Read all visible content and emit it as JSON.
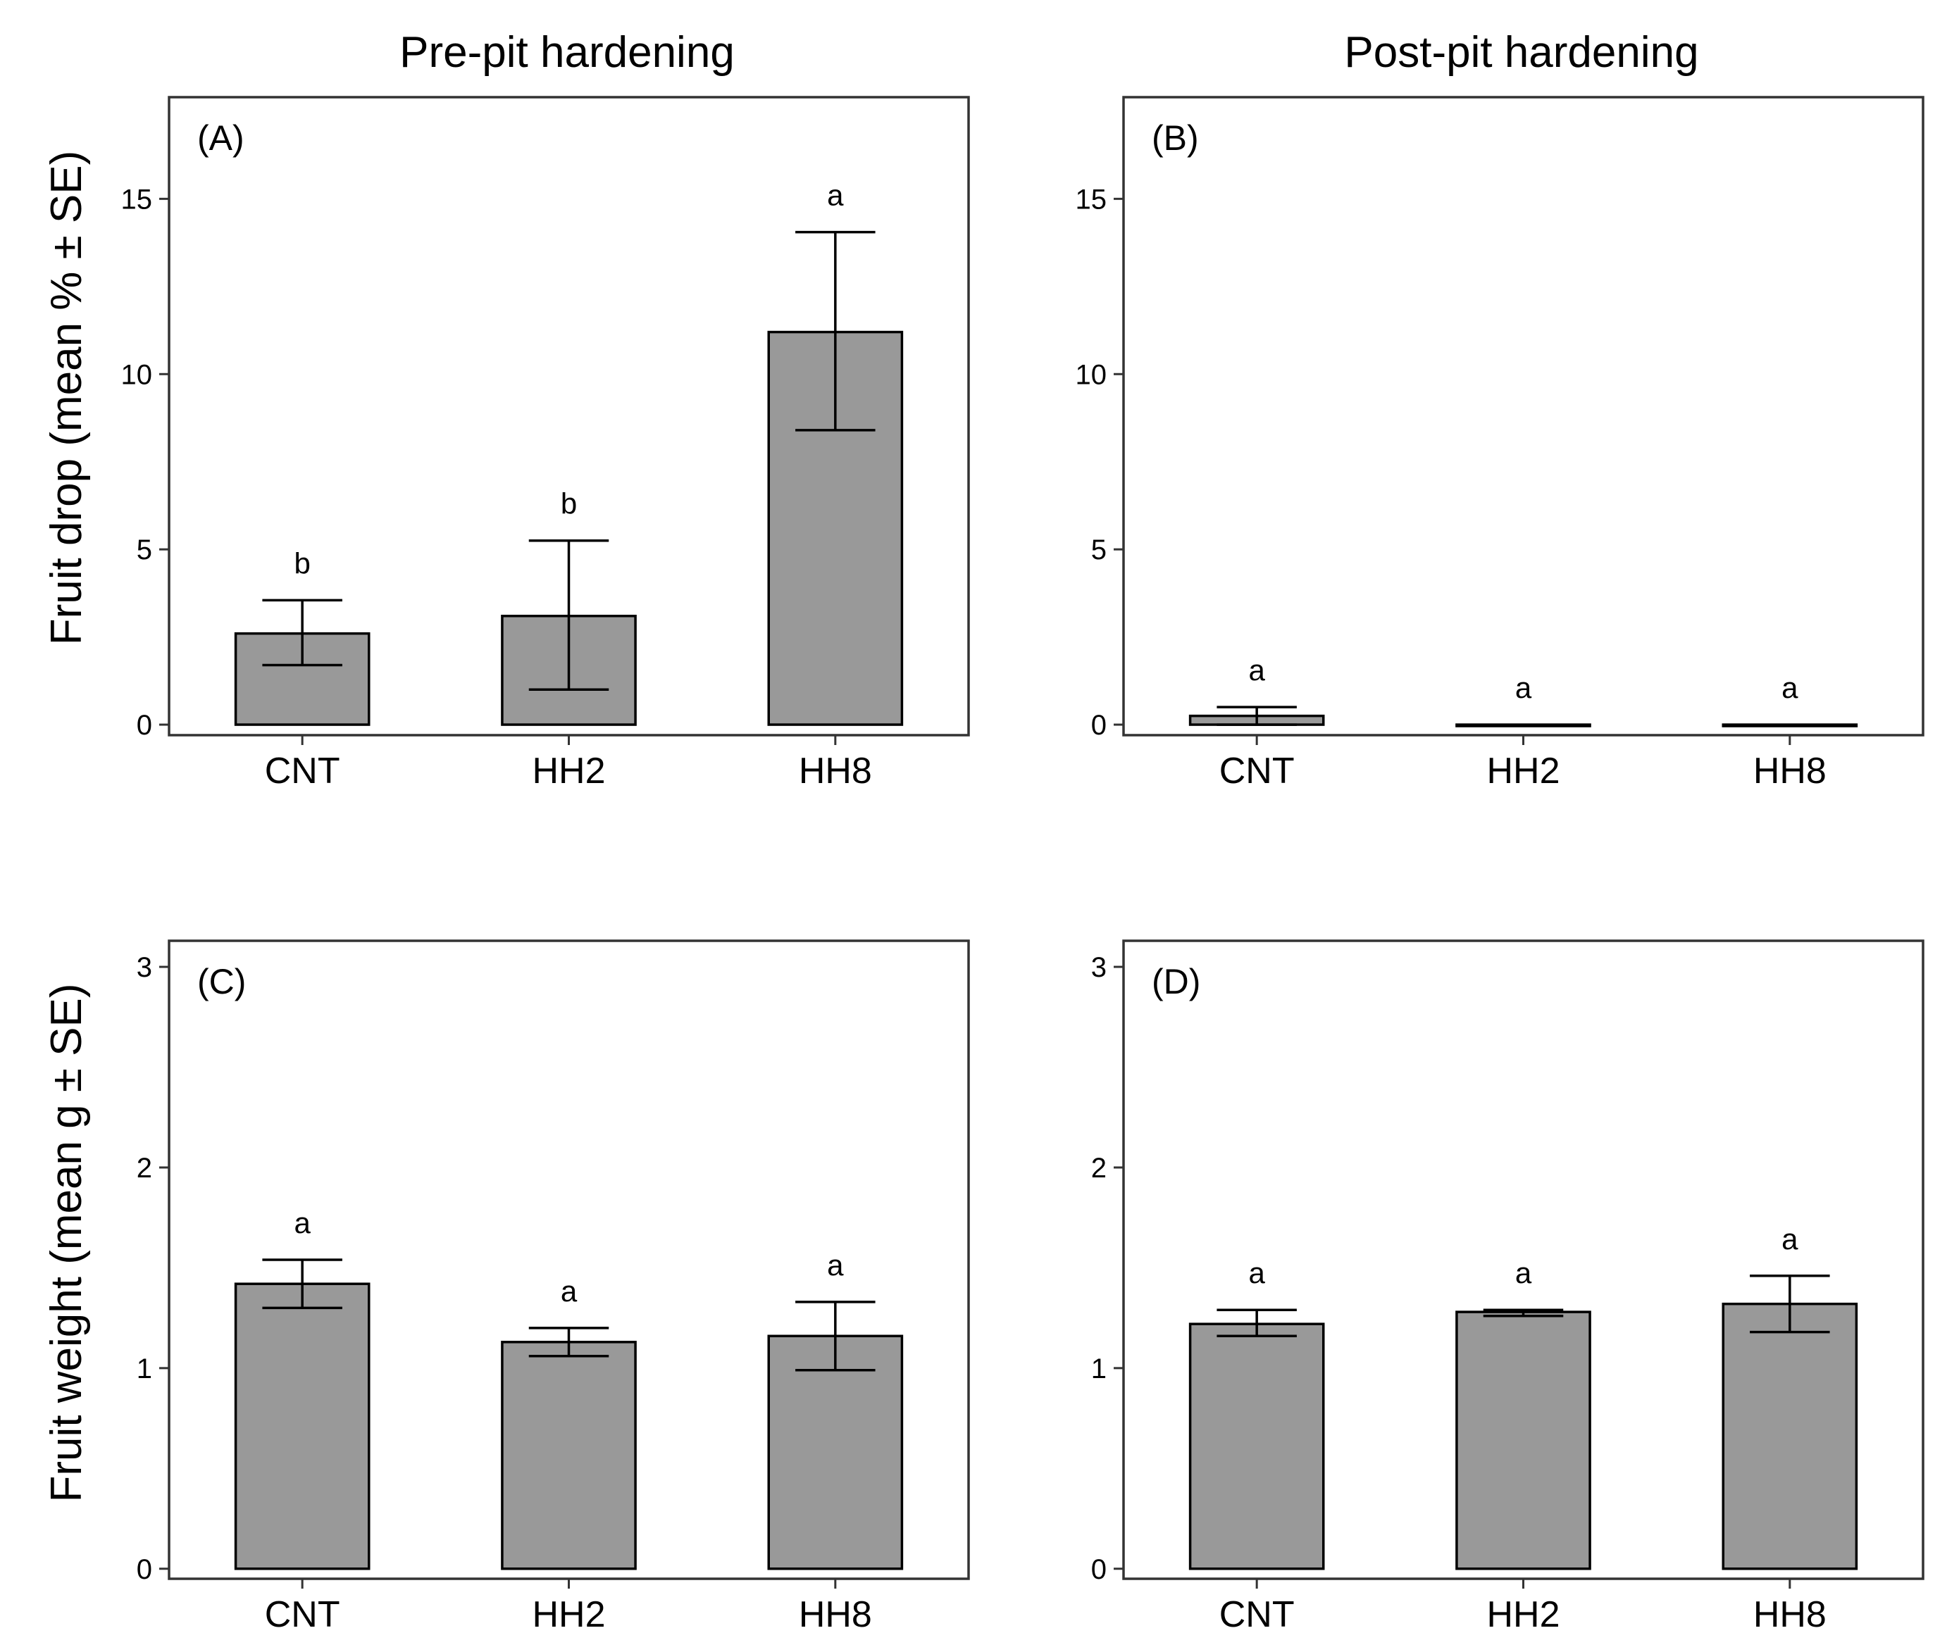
{
  "column_titles": [
    "Pre-pit hardening",
    "Post-pit hardening"
  ],
  "row_ylabels": [
    "Fruit drop (mean % ± SE)",
    "Fruit weight (mean g ± SE)"
  ],
  "colors": {
    "bar_fill": "#999999",
    "bar_stroke": "#000000",
    "frame": "#333333"
  },
  "chart_data": [
    {
      "panel": "(A)",
      "type": "bar",
      "row": 0,
      "col": 0,
      "categories": [
        "CNT",
        "HH2",
        "HH8"
      ],
      "values": [
        2.6,
        3.1,
        11.2
      ],
      "se_low": [
        1.7,
        1.0,
        8.4
      ],
      "se_high": [
        3.55,
        5.25,
        14.05
      ],
      "letters": [
        "b",
        "b",
        "a"
      ],
      "ylim": [
        -0.3,
        17.9
      ],
      "yticks": [
        0,
        5,
        10,
        15
      ]
    },
    {
      "panel": "(B)",
      "type": "bar",
      "row": 0,
      "col": 1,
      "categories": [
        "CNT",
        "HH2",
        "HH8"
      ],
      "values": [
        0.25,
        0.0,
        0.0
      ],
      "se_low": [
        0.0,
        0.0,
        0.0
      ],
      "se_high": [
        0.5,
        0.0,
        0.0
      ],
      "letters": [
        "a",
        "a",
        "a"
      ],
      "ylim": [
        -0.3,
        17.9
      ],
      "yticks": [
        0,
        5,
        10,
        15
      ]
    },
    {
      "panel": "(C)",
      "type": "bar",
      "row": 1,
      "col": 0,
      "categories": [
        "CNT",
        "HH2",
        "HH8"
      ],
      "values": [
        1.42,
        1.13,
        1.16
      ],
      "se_low": [
        1.3,
        1.06,
        0.99
      ],
      "se_high": [
        1.54,
        1.2,
        1.33
      ],
      "letters": [
        "a",
        "a",
        "a"
      ],
      "ylim": [
        -0.05,
        3.13
      ],
      "yticks": [
        0,
        1,
        2,
        3
      ]
    },
    {
      "panel": "(D)",
      "type": "bar",
      "row": 1,
      "col": 1,
      "categories": [
        "CNT",
        "HH2",
        "HH8"
      ],
      "values": [
        1.22,
        1.28,
        1.32
      ],
      "se_low": [
        1.16,
        1.26,
        1.18
      ],
      "se_high": [
        1.29,
        1.29,
        1.46
      ],
      "letters": [
        "a",
        "a",
        "a"
      ],
      "ylim": [
        -0.05,
        3.13
      ],
      "yticks": [
        0,
        1,
        2,
        3
      ]
    }
  ]
}
